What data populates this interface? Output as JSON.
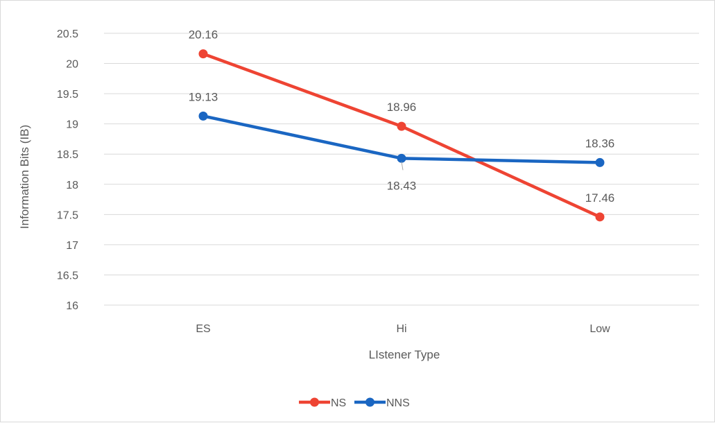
{
  "chart_data": {
    "type": "line",
    "title": "",
    "xlabel": "LIstener Type",
    "ylabel": "Information Bits (IB)",
    "categories": [
      "ES",
      "Hi",
      "Low"
    ],
    "ylim": [
      16,
      20.5
    ],
    "yticks": [
      "16",
      "16.5",
      "17",
      "17.5",
      "18",
      "18.5",
      "19",
      "19.5",
      "20",
      "20.5"
    ],
    "grid": true,
    "legend_position": "bottom",
    "series": [
      {
        "name": "NS",
        "color": "#ee4433",
        "values": [
          20.16,
          18.96,
          17.46
        ],
        "labels": [
          "20.16",
          "18.96",
          "17.46"
        ]
      },
      {
        "name": "NNS",
        "color": "#1a66c2",
        "values": [
          19.13,
          18.43,
          18.36
        ],
        "labels": [
          "19.13",
          "18.43",
          "18.36"
        ]
      }
    ]
  }
}
